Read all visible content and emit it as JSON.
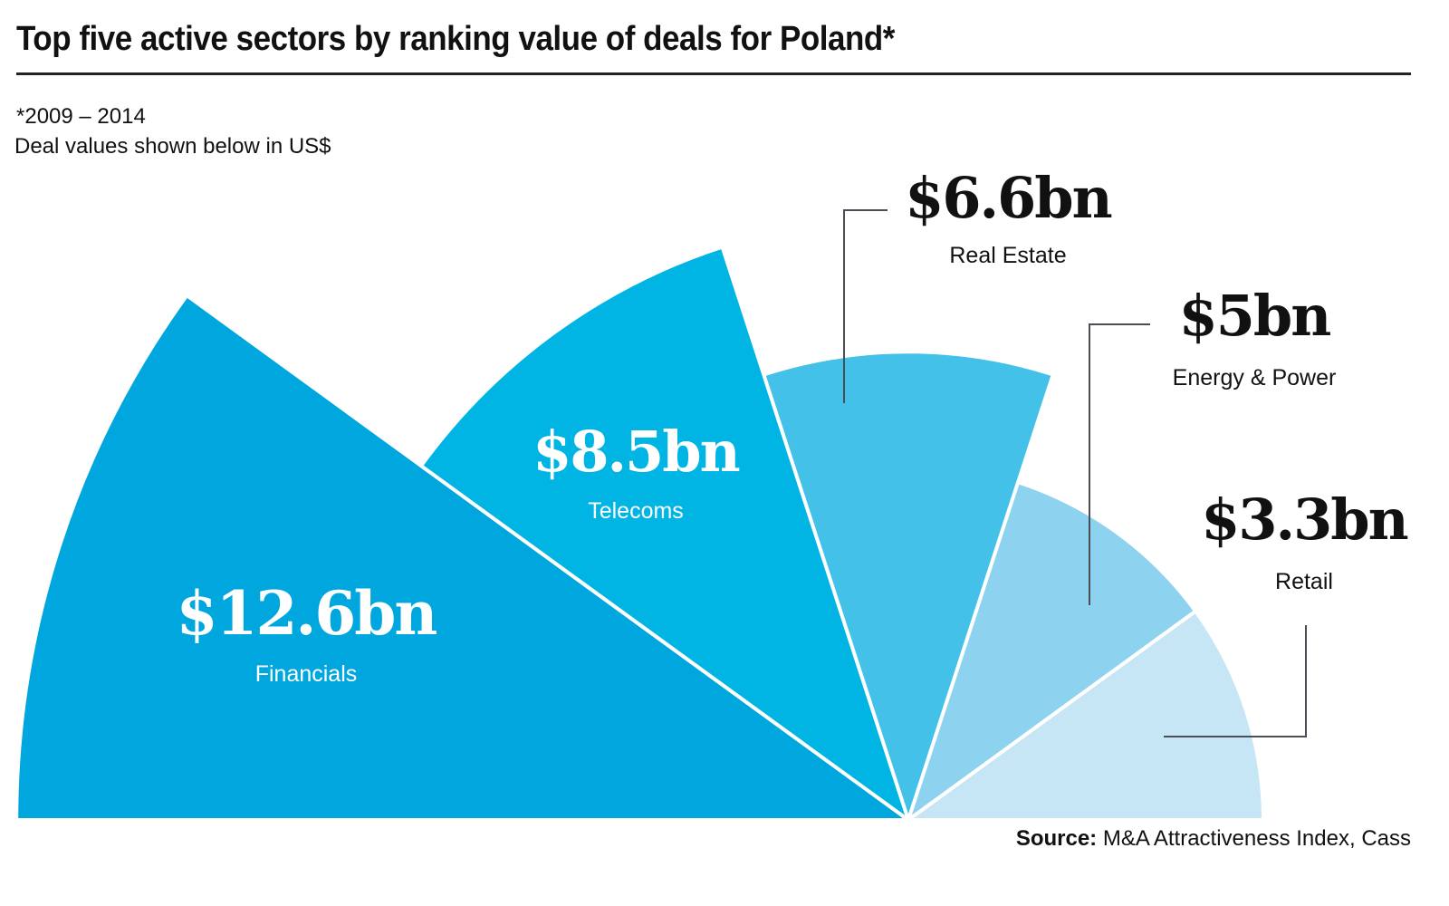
{
  "header": {
    "title": "Top five active sectors by ranking value of deals for Poland*",
    "note_period": "*2009 – 2014",
    "note_units": "Deal values shown below in US$"
  },
  "footer": {
    "source_label": "Source:",
    "source_text": "M&A Attractiveness Index, Cass"
  },
  "chart_data": {
    "type": "pie",
    "subtype": "polar-area half-rose (equal angle wedges, radius by value)",
    "title": "Top five active sectors by ranking value of deals for Poland*",
    "units": "US$ bn",
    "period": "2009 – 2014",
    "categories": [
      "Financials",
      "Telecoms",
      "Real Estate",
      "Energy & Power",
      "Retail"
    ],
    "values": [
      12.6,
      8.5,
      6.6,
      5,
      3.3
    ],
    "value_labels": [
      "$12.6bn",
      "$8.5bn",
      "$6.6bn",
      "$5bn",
      "$3.3bn"
    ],
    "colors": [
      "#00a7de",
      "#00b5e4",
      "#43c1e8",
      "#8dd3ef",
      "#c6e6f6"
    ],
    "label_colors": [
      "#ffffff",
      "#ffffff",
      "#111111",
      "#111111",
      "#111111"
    ],
    "label_placement": [
      "inside",
      "inside",
      "outside-callout",
      "outside-callout",
      "outside-callout"
    ]
  }
}
